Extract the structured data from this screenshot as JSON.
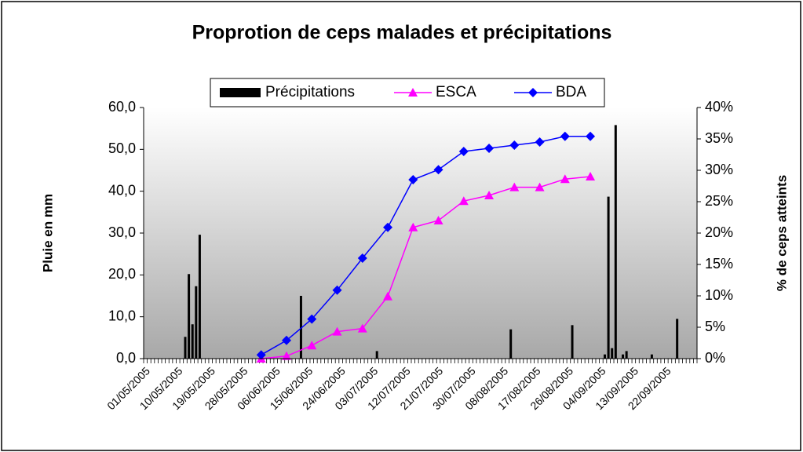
{
  "chart_data": {
    "type": "bar-line",
    "title": "Proprotion de ceps malades et précipitations",
    "y_label": "Pluie en mm",
    "y2_label": "% de ceps atteints",
    "categories": [
      "01/05/2005",
      null,
      null,
      null,
      null,
      null,
      null,
      null,
      null,
      "10/05/2005",
      null,
      null,
      null,
      null,
      null,
      null,
      null,
      null,
      "19/05/2005",
      null,
      null,
      null,
      null,
      null,
      null,
      null,
      null,
      "28/05/2005",
      null,
      null,
      null,
      null,
      null,
      null,
      null,
      null,
      "06/06/2005",
      null,
      null,
      null,
      null,
      null,
      null,
      null,
      null,
      "15/06/2005",
      null,
      null,
      null,
      null,
      null,
      null,
      null,
      null,
      "24/06/2005",
      null,
      null,
      null,
      null,
      null,
      null,
      null,
      null,
      "03/07/2005",
      null,
      null,
      null,
      null,
      null,
      null,
      null,
      null,
      "12/07/2005",
      null,
      null,
      null,
      null,
      null,
      null,
      null,
      null,
      "21/07/2005",
      null,
      null,
      null,
      null,
      null,
      null,
      null,
      null,
      "30/07/2005",
      null,
      null,
      null,
      null,
      null,
      null,
      null,
      null,
      "08/08/2005",
      null,
      null,
      null,
      null,
      null,
      null,
      null,
      null,
      "17/08/2005",
      null,
      null,
      null,
      null,
      null,
      null,
      null,
      null,
      "26/08/2005",
      null,
      null,
      null,
      null,
      null,
      null,
      null,
      null,
      "04/09/2005",
      null,
      null,
      null,
      null,
      null,
      null,
      null,
      null,
      "13/09/2005",
      null,
      null,
      null,
      null,
      null,
      null,
      null,
      null,
      "22/09/2005",
      null,
      null,
      null,
      null,
      null,
      null,
      null,
      null
    ],
    "series": [
      {
        "name": "Précipitations",
        "kind": "bar",
        "color": "#000000",
        "values": [
          0,
          0,
          0,
          0,
          0,
          0,
          0,
          0,
          0,
          0,
          0,
          5.2,
          20.2,
          8.2,
          17.3,
          29.6,
          0,
          0,
          0,
          0,
          0,
          0,
          0,
          0,
          0,
          0,
          0,
          0,
          0,
          0,
          0,
          0,
          0,
          0,
          0,
          0,
          0,
          0,
          0,
          0,
          0,
          0,
          0,
          15,
          0,
          0,
          0,
          0,
          0,
          0,
          0,
          0,
          0,
          0,
          0,
          0,
          0,
          0,
          0,
          0,
          0,
          0,
          0,
          0,
          1.8,
          0,
          0,
          0,
          0,
          0,
          0,
          0,
          0,
          0,
          0,
          0,
          0,
          0,
          0,
          0,
          0,
          0,
          0,
          0,
          0,
          0,
          0,
          0,
          0,
          0,
          0,
          0,
          0,
          0,
          0,
          0,
          0,
          0,
          0,
          0,
          0,
          7,
          0,
          0,
          0,
          0,
          0,
          0,
          0,
          0,
          0,
          0,
          0,
          0,
          0,
          0,
          0,
          0,
          8,
          0,
          0,
          0,
          0,
          0,
          0,
          0,
          0,
          1,
          38.7,
          2.5,
          55.8,
          0,
          1,
          1.8,
          0,
          0,
          0,
          0,
          0,
          0,
          1,
          0,
          0,
          0,
          0,
          0,
          0,
          9.5,
          0,
          0,
          0,
          0,
          0
        ]
      },
      {
        "name": "ESCA",
        "kind": "line",
        "marker": "triangle",
        "axis": "y2",
        "color": "#ff00ff",
        "values": [
          null,
          null,
          null,
          null,
          null,
          null,
          null,
          null,
          null,
          null,
          null,
          null,
          null,
          null,
          null,
          null,
          null,
          null,
          null,
          null,
          null,
          null,
          null,
          null,
          null,
          null,
          null,
          null,
          null,
          null,
          null,
          null,
          0,
          null,
          null,
          null,
          null,
          null,
          null,
          0.4,
          null,
          null,
          null,
          null,
          null,
          null,
          2.1,
          null,
          null,
          null,
          null,
          null,
          null,
          4.3,
          null,
          null,
          null,
          null,
          null,
          null,
          4.8,
          null,
          null,
          null,
          null,
          null,
          null,
          9.9,
          null,
          null,
          null,
          null,
          null,
          null,
          20.9,
          null,
          null,
          null,
          null,
          null,
          null,
          22,
          null,
          null,
          null,
          null,
          null,
          null,
          25.1,
          null,
          null,
          null,
          null,
          null,
          null,
          26,
          null,
          null,
          null,
          null,
          null,
          null,
          27.3,
          null,
          null,
          null,
          null,
          null,
          null,
          27.3,
          null,
          null,
          null,
          null,
          null,
          null,
          28.6,
          null,
          null,
          null,
          null,
          null,
          null,
          29,
          null,
          null,
          null,
          null,
          null,
          null,
          null,
          null,
          null,
          null,
          null,
          null,
          null,
          null,
          null,
          null,
          null,
          null,
          null,
          null,
          null,
          null,
          null,
          null,
          null,
          null,
          null,
          null,
          null
        ]
      },
      {
        "name": "BDA",
        "kind": "line",
        "marker": "diamond",
        "axis": "y2",
        "color": "#0000ff",
        "values": [
          null,
          null,
          null,
          null,
          null,
          null,
          null,
          null,
          null,
          null,
          null,
          null,
          null,
          null,
          null,
          null,
          null,
          null,
          null,
          null,
          null,
          null,
          null,
          null,
          null,
          null,
          null,
          null,
          null,
          null,
          null,
          null,
          0.6,
          null,
          null,
          null,
          null,
          null,
          null,
          2.9,
          null,
          null,
          null,
          null,
          null,
          null,
          6.3,
          null,
          null,
          null,
          null,
          null,
          null,
          10.9,
          null,
          null,
          null,
          null,
          null,
          null,
          16,
          null,
          null,
          null,
          null,
          null,
          null,
          20.9,
          null,
          null,
          null,
          null,
          null,
          null,
          28.5,
          null,
          null,
          null,
          null,
          null,
          null,
          30.1,
          null,
          null,
          null,
          null,
          null,
          null,
          33,
          null,
          null,
          null,
          null,
          null,
          null,
          33.5,
          null,
          null,
          null,
          null,
          null,
          null,
          34,
          null,
          null,
          null,
          null,
          null,
          null,
          34.5,
          null,
          null,
          null,
          null,
          null,
          null,
          35.4,
          null,
          null,
          null,
          null,
          null,
          null,
          35.4,
          null,
          null,
          null,
          null,
          null,
          null,
          null,
          null,
          null,
          null,
          null,
          null,
          null,
          null,
          null,
          null,
          null,
          null,
          null,
          null,
          null,
          null,
          null,
          null,
          null,
          null,
          null,
          null,
          null
        ]
      }
    ],
    "ylim": [
      0,
      60
    ],
    "yticks": [
      {
        "value": 0,
        "label": "0,0"
      },
      {
        "value": 10,
        "label": "10,0"
      },
      {
        "value": 20,
        "label": "20,0"
      },
      {
        "value": 30,
        "label": "30,0"
      },
      {
        "value": 40,
        "label": "40,0"
      },
      {
        "value": 50,
        "label": "50,0"
      },
      {
        "value": 60,
        "label": "60,0"
      }
    ],
    "y2lim": [
      0,
      40
    ],
    "y2ticks": [
      {
        "value": 0,
        "label": "0%"
      },
      {
        "value": 5,
        "label": "5%"
      },
      {
        "value": 10,
        "label": "10%"
      },
      {
        "value": 15,
        "label": "15%"
      },
      {
        "value": 20,
        "label": "20%"
      },
      {
        "value": 25,
        "label": "25%"
      },
      {
        "value": 30,
        "label": "30%"
      },
      {
        "value": 35,
        "label": "35%"
      },
      {
        "value": 40,
        "label": "40%"
      }
    ],
    "legend": "top"
  }
}
